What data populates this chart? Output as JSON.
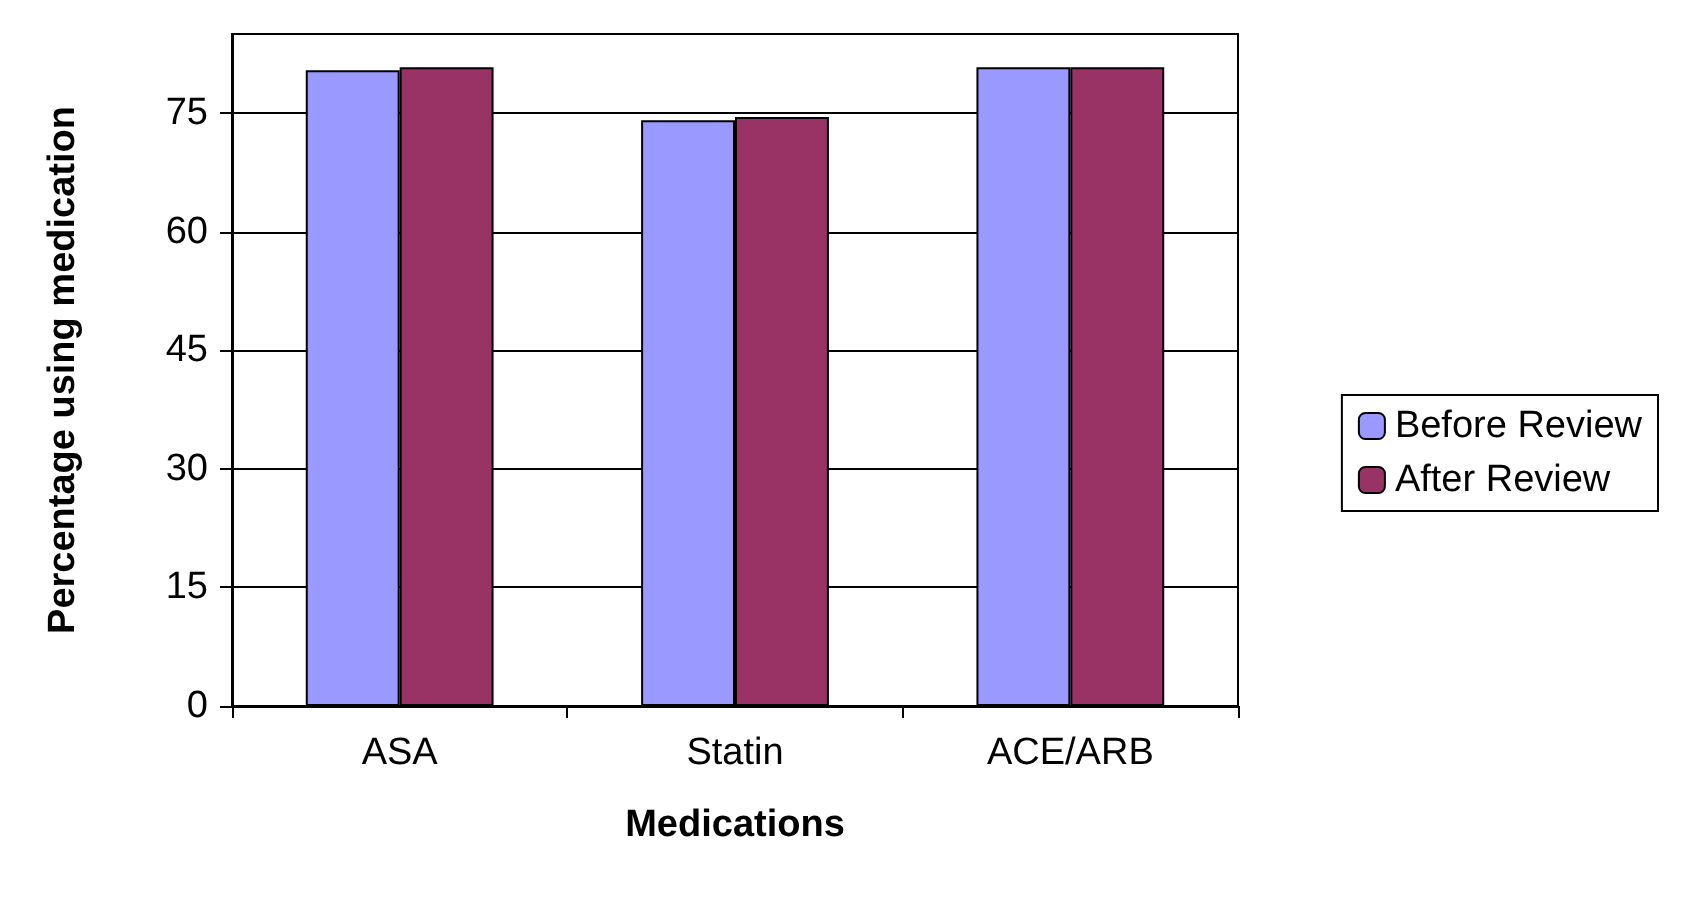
{
  "chart_data": {
    "type": "bar",
    "xlabel": "Medications",
    "ylabel": "Percentage using medication",
    "categories": [
      "ASA",
      "Statin",
      "ACE/ARB"
    ],
    "series": [
      {
        "name": "Before Review",
        "color": "#9999ff",
        "values": [
          80.4,
          74.1,
          80.8
        ]
      },
      {
        "name": "After Review",
        "color": "#993366",
        "values": [
          80.8,
          74.5,
          80.8
        ]
      }
    ],
    "ylim": [
      0,
      85
    ],
    "yticks": [
      0,
      15,
      30,
      45,
      60,
      75
    ],
    "grid": "y",
    "legend": "right"
  }
}
